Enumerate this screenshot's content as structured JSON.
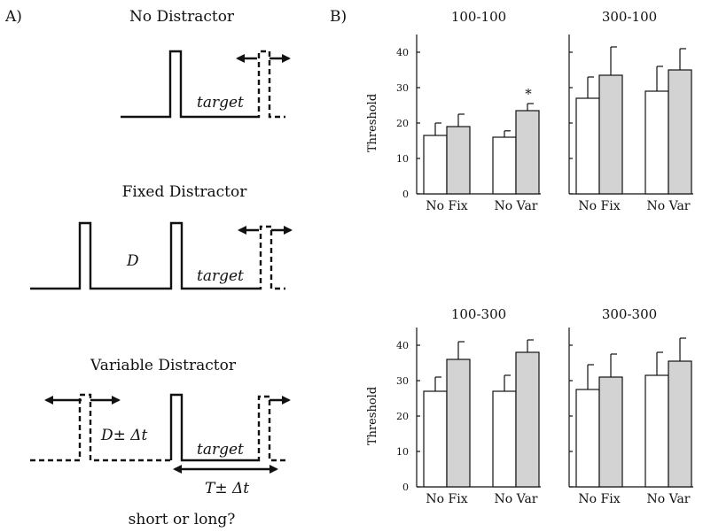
{
  "panel_a": {
    "label": "A)",
    "sections": [
      {
        "title": "No Distractor",
        "target_label": "target"
      },
      {
        "title": "Fixed Distractor",
        "distractor_label": "D",
        "target_label": "target"
      },
      {
        "title": "Variable Distractor",
        "distractor_label": "D± Δt",
        "target_label": "target",
        "interval_label": "T± Δt"
      }
    ],
    "question": "short or long?"
  },
  "panel_b": {
    "label": "B)",
    "ylabel": "Threshold",
    "yticks": [
      "0",
      "10",
      "20",
      "30",
      "40"
    ]
  },
  "chart_data": [
    {
      "type": "bar",
      "title": "100-100",
      "ylabel": "Threshold",
      "ylim": [
        0,
        45
      ],
      "groups": [
        {
          "name": "No Fix",
          "bars": [
            {
              "label": "No",
              "fill": "white",
              "value": 16.5,
              "error": 3.5
            },
            {
              "label": "Fix",
              "fill": "gray",
              "value": 19,
              "error": 3.5
            }
          ]
        },
        {
          "name": "No Var",
          "bars": [
            {
              "label": "No",
              "fill": "white",
              "value": 16,
              "error": 1.8
            },
            {
              "label": "Var",
              "fill": "gray",
              "value": 23.5,
              "error": 2,
              "annotation": "*"
            }
          ]
        }
      ]
    },
    {
      "type": "bar",
      "title": "300-100",
      "ylim": [
        0,
        45
      ],
      "groups": [
        {
          "name": "No Fix",
          "bars": [
            {
              "label": "No",
              "fill": "white",
              "value": 27,
              "error": 6
            },
            {
              "label": "Fix",
              "fill": "gray",
              "value": 33.5,
              "error": 8
            }
          ]
        },
        {
          "name": "No Var",
          "bars": [
            {
              "label": "No",
              "fill": "white",
              "value": 29,
              "error": 7
            },
            {
              "label": "Var",
              "fill": "gray",
              "value": 35,
              "error": 6
            }
          ]
        }
      ]
    },
    {
      "type": "bar",
      "title": "100-300",
      "ylabel": "Threshold",
      "ylim": [
        0,
        45
      ],
      "groups": [
        {
          "name": "No Fix",
          "bars": [
            {
              "label": "No",
              "fill": "white",
              "value": 27,
              "error": 4
            },
            {
              "label": "Fix",
              "fill": "gray",
              "value": 36,
              "error": 5
            }
          ]
        },
        {
          "name": "No Var",
          "bars": [
            {
              "label": "No",
              "fill": "white",
              "value": 27,
              "error": 4.5
            },
            {
              "label": "Var",
              "fill": "gray",
              "value": 38,
              "error": 3.5
            }
          ]
        }
      ]
    },
    {
      "type": "bar",
      "title": "300-300",
      "ylim": [
        0,
        45
      ],
      "groups": [
        {
          "name": "No Fix",
          "bars": [
            {
              "label": "No",
              "fill": "white",
              "value": 27.5,
              "error": 7
            },
            {
              "label": "Fix",
              "fill": "gray",
              "value": 31,
              "error": 6.5
            }
          ]
        },
        {
          "name": "No Var",
          "bars": [
            {
              "label": "No",
              "fill": "white",
              "value": 31.5,
              "error": 6.5
            },
            {
              "label": "Var",
              "fill": "gray",
              "value": 35.5,
              "error": 6.5
            }
          ]
        }
      ]
    }
  ]
}
